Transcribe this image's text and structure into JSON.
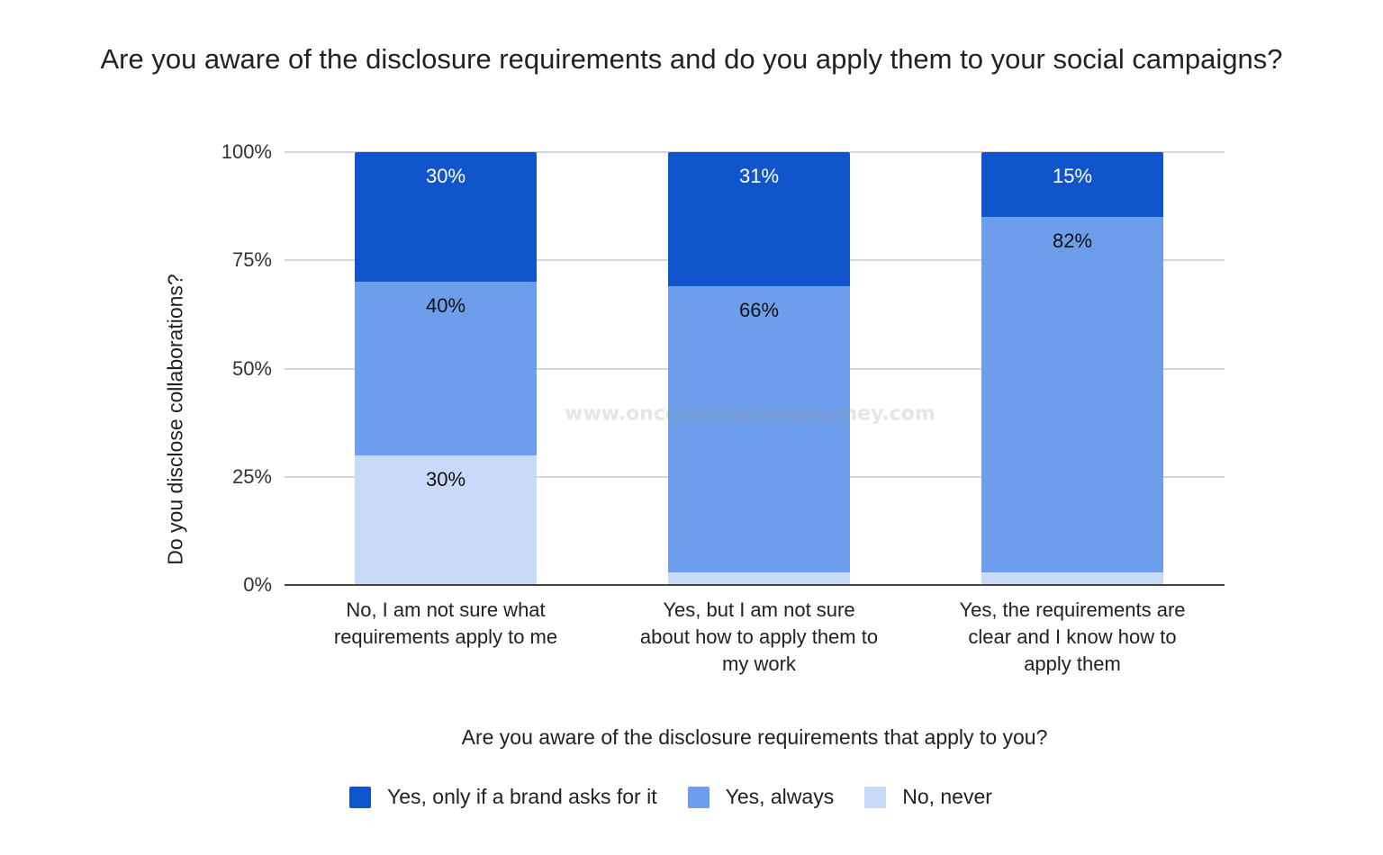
{
  "chart_data": {
    "type": "bar",
    "stacked": true,
    "title": "Are you aware of the disclosure requirements and do you apply them to your social campaigns?",
    "xlabel": "Are you aware of the disclosure requirements that apply to you?",
    "ylabel": "Do you disclose collaborations?",
    "ylim": [
      0,
      100
    ],
    "yticks": [
      "0%",
      "25%",
      "50%",
      "75%",
      "100%"
    ],
    "ytick_values": [
      0,
      25,
      50,
      75,
      100
    ],
    "grid": true,
    "legend_position": "bottom",
    "categories": [
      [
        "No, I am not sure what",
        "requirements apply to me"
      ],
      [
        "Yes, but I am not sure",
        "about how to apply them to",
        "my work"
      ],
      [
        "Yes, the requirements are",
        "clear and I know how to",
        "apply them"
      ]
    ],
    "series": [
      {
        "name": "No, never",
        "color": "#c9daf8",
        "values": [
          30,
          3,
          3
        ],
        "labels": [
          "30%",
          "3%",
          "3%"
        ]
      },
      {
        "name": "Yes, always",
        "color": "#6d9eeb",
        "values": [
          40,
          66,
          82
        ],
        "labels": [
          "40%",
          "66%",
          "82%"
        ]
      },
      {
        "name": "Yes, only if a brand asks for it",
        "color": "#1155cc",
        "values": [
          30,
          31,
          15
        ],
        "labels": [
          "30%",
          "31%",
          "15%"
        ]
      }
    ],
    "legend_order": [
      2,
      1,
      0
    ]
  },
  "watermark": "www.onceinalifetimejourney.com"
}
